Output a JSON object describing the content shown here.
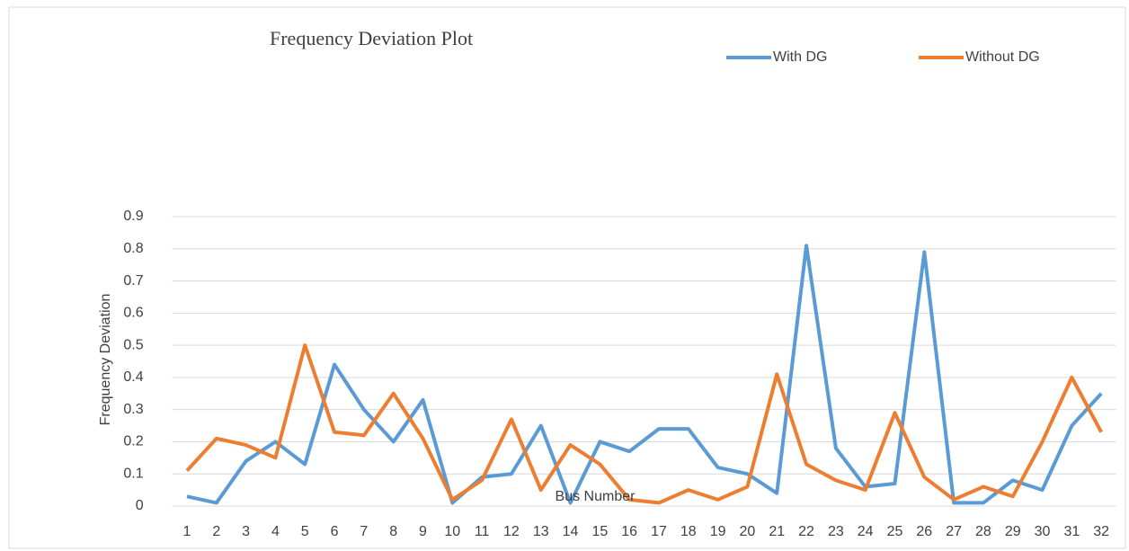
{
  "chart_data": {
    "type": "line",
    "title": "Frequency Deviation Plot",
    "x_label": "Bus Number",
    "y_label": "Frequency Deviation",
    "categories": [
      "1",
      "2",
      "3",
      "4",
      "5",
      "6",
      "7",
      "8",
      "9",
      "10",
      "11",
      "12",
      "13",
      "14",
      "15",
      "16",
      "17",
      "18",
      "19",
      "20",
      "21",
      "22",
      "23",
      "24",
      "25",
      "26",
      "27",
      "28",
      "29",
      "30",
      "31",
      "32"
    ],
    "series": [
      {
        "name": "With DG",
        "color": "#5b9bd5",
        "values": [
          0.03,
          0.01,
          0.14,
          0.2,
          0.13,
          0.44,
          0.3,
          0.2,
          0.33,
          0.01,
          0.09,
          0.1,
          0.25,
          0.01,
          0.2,
          0.17,
          0.24,
          0.24,
          0.12,
          0.1,
          0.04,
          0.81,
          0.18,
          0.06,
          0.07,
          0.79,
          0.01,
          0.01,
          0.08,
          0.05,
          0.25,
          0.35
        ]
      },
      {
        "name": "Without DG",
        "color": "#ed7d31",
        "values": [
          0.11,
          0.21,
          0.19,
          0.15,
          0.5,
          0.23,
          0.22,
          0.35,
          0.21,
          0.02,
          0.08,
          0.27,
          0.05,
          0.19,
          0.13,
          0.02,
          0.01,
          0.05,
          0.02,
          0.06,
          0.41,
          0.13,
          0.08,
          0.05,
          0.29,
          0.09,
          0.02,
          0.06,
          0.03,
          0.2,
          0.4,
          0.23
        ]
      }
    ],
    "ylim": [
      0,
      0.9
    ],
    "yticks": [
      0,
      0.1,
      0.2,
      0.3,
      0.4,
      0.5,
      0.6,
      0.7,
      0.8,
      0.9
    ],
    "grid": true,
    "legend": "top-right"
  }
}
